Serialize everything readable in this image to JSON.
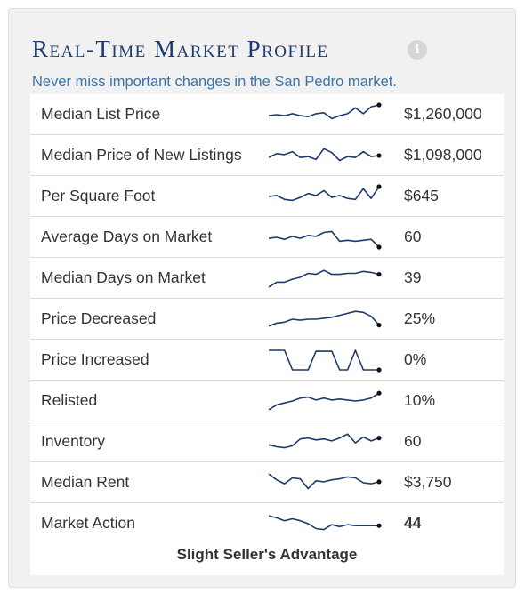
{
  "widget": {
    "title": "Real-Time Market Profile",
    "subtitle": "Never miss important changes in the San Pedro market.",
    "info_icon": "i"
  },
  "rows": [
    {
      "label": "Median List Price",
      "value": "$1,260,000",
      "bold": false,
      "trend": [
        0.55,
        0.5,
        0.55,
        0.45,
        0.55,
        0.6,
        0.45,
        0.4,
        0.7,
        0.55,
        0.45,
        0.15,
        0.45,
        0.1,
        0.0
      ]
    },
    {
      "label": "Median Price of New Listings",
      "value": "$1,098,000",
      "bold": false,
      "trend": [
        0.6,
        0.4,
        0.45,
        0.3,
        0.6,
        0.55,
        0.7,
        0.15,
        0.35,
        0.75,
        0.55,
        0.6,
        0.3,
        0.55,
        0.5
      ]
    },
    {
      "label": "Per Square Foot",
      "value": "$645",
      "bold": false,
      "trend": [
        0.5,
        0.45,
        0.65,
        0.7,
        0.55,
        0.35,
        0.45,
        0.2,
        0.55,
        0.45,
        0.6,
        0.65,
        0.1,
        0.6,
        0.0
      ]
    },
    {
      "label": "Average Days on Market",
      "value": "60",
      "bold": false,
      "trend": [
        0.55,
        0.5,
        0.6,
        0.45,
        0.55,
        0.4,
        0.45,
        0.25,
        0.2,
        0.7,
        0.65,
        0.7,
        0.65,
        0.6,
        1.0
      ]
    },
    {
      "label": "Median Days on Market",
      "value": "39",
      "bold": false,
      "trend": [
        0.95,
        0.7,
        0.7,
        0.55,
        0.45,
        0.25,
        0.3,
        0.1,
        0.3,
        0.3,
        0.25,
        0.25,
        0.15,
        0.2,
        0.3
      ]
    },
    {
      "label": "Price Decreased",
      "value": "25%",
      "bold": false,
      "trend": [
        0.85,
        0.7,
        0.65,
        0.5,
        0.55,
        0.5,
        0.5,
        0.45,
        0.4,
        0.3,
        0.2,
        0.1,
        0.15,
        0.35,
        0.8
      ]
    },
    {
      "label": "Price Increased",
      "value": "0%",
      "bold": false,
      "trend": [
        0.0,
        0.0,
        0.0,
        1.0,
        1.0,
        1.0,
        0.05,
        0.05,
        0.05,
        1.0,
        1.0,
        0.0,
        1.0,
        1.0,
        1.0
      ]
    },
    {
      "label": "Relisted",
      "value": "10%",
      "bold": false,
      "trend": [
        0.95,
        0.7,
        0.6,
        0.5,
        0.35,
        0.3,
        0.45,
        0.35,
        0.45,
        0.4,
        0.45,
        0.5,
        0.45,
        0.35,
        0.1
      ]
    },
    {
      "label": "Inventory",
      "value": "60",
      "bold": false,
      "trend": [
        0.65,
        0.75,
        0.8,
        0.7,
        0.35,
        0.3,
        0.4,
        0.35,
        0.45,
        0.3,
        0.1,
        0.55,
        0.25,
        0.45,
        0.3
      ]
    },
    {
      "label": "Median Rent",
      "value": "$3,750",
      "bold": false,
      "trend": [
        0.05,
        0.35,
        0.55,
        0.25,
        0.3,
        0.8,
        0.4,
        0.45,
        0.35,
        0.3,
        0.2,
        0.25,
        0.5,
        0.55,
        0.45
      ]
    },
    {
      "label": "Market Action",
      "value": "44",
      "bold": true,
      "trend": [
        0.1,
        0.2,
        0.35,
        0.25,
        0.35,
        0.5,
        0.75,
        0.8,
        0.55,
        0.65,
        0.55,
        0.6,
        0.6,
        0.6,
        0.6
      ]
    }
  ],
  "verdict": "Slight Seller's Advantage",
  "colors": {
    "title": "#1d3a6d",
    "subtitle": "#3a74a8",
    "sparkline": "#1d3a6d"
  }
}
